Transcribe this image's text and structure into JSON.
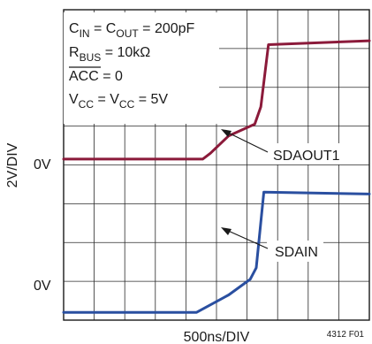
{
  "chart_data": {
    "type": "line",
    "xlabel": "500ns/DIV",
    "ylabel": "2V/DIV",
    "figure_id": "4312 F01",
    "x_divisions": 10,
    "y_divisions": 8,
    "xlim": [
      0,
      10
    ],
    "ylim": [
      0,
      8
    ],
    "zero_markers": [
      {
        "label": "0V",
        "level_div": 4.15
      },
      {
        "label": "0V",
        "level_div": 0.2
      }
    ],
    "conditions": [
      {
        "main": "C",
        "sub": "IN",
        "rest": " = C",
        "sub2": "OUT",
        "rest2": " = 200pF"
      },
      {
        "main": "R",
        "sub": "BUS",
        "rest": " = 10kΩ",
        "sub2": "",
        "rest2": ""
      },
      {
        "main": "ACC",
        "sub": "",
        "rest": " = 0",
        "sub2": "",
        "rest2": ""
      },
      {
        "main": "V",
        "sub": "CC",
        "rest": " = V",
        "sub2": "CC",
        "rest2": " = 5V"
      }
    ],
    "series": [
      {
        "name": "SDAOUT1",
        "color": "#8b1a3a",
        "x": [
          0,
          4.55,
          4.8,
          5.4,
          6.25,
          6.45,
          6.7,
          10
        ],
        "y": [
          4.15,
          4.15,
          4.3,
          4.75,
          5.05,
          5.5,
          7.1,
          7.2
        ]
      },
      {
        "name": "SDAIN",
        "color": "#2a4fa0",
        "x": [
          0,
          4.35,
          5.4,
          6.1,
          6.3,
          6.55,
          10
        ],
        "y": [
          0.2,
          0.2,
          0.65,
          1.05,
          1.35,
          3.3,
          3.25
        ]
      }
    ],
    "annotations": [
      {
        "text": "SDAOUT1",
        "target_series": "SDAOUT1"
      },
      {
        "text": "SDAIN",
        "target_series": "SDAIN"
      }
    ]
  }
}
